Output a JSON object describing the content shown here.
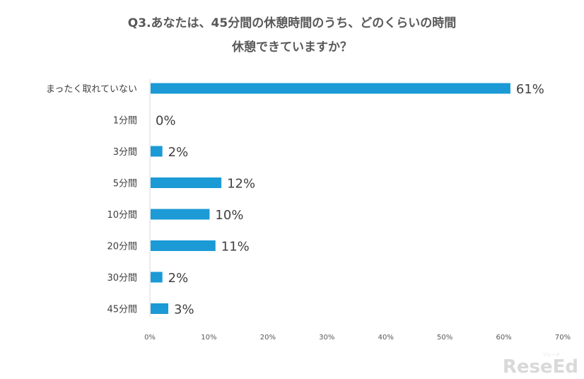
{
  "chart_data": {
    "type": "bar",
    "orientation": "horizontal",
    "title_lines": [
      "Q3.あなたは、45分間の休憩時間のうち、どのくらいの時間",
      "休憩できていますか？"
    ],
    "categories": [
      "まったく取れていない",
      "1分間",
      "3分間",
      "5分間",
      "10分間",
      "20分間",
      "30分間",
      "45分間"
    ],
    "values": [
      61,
      0,
      2,
      12,
      10,
      11,
      2,
      3
    ],
    "value_labels": [
      "61%",
      "0%",
      "2%",
      "12%",
      "10%",
      "11%",
      "2%",
      "3%"
    ],
    "xlim": [
      0,
      70
    ],
    "x_ticks": [
      "0%",
      "10%",
      "20%",
      "30%",
      "40%",
      "50%",
      "60%",
      "70%"
    ],
    "grid": false,
    "bar_color": "#1b9ad6"
  },
  "branding": {
    "logo_text": "ReseEd",
    "logo_sub": "リシード"
  }
}
